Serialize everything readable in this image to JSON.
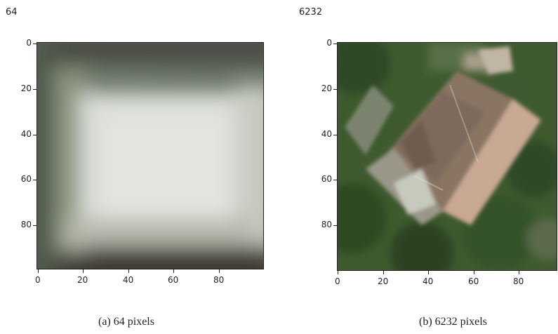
{
  "panels": [
    {
      "title": "64",
      "caption": "(a) 64 pixels",
      "image_description": "blurry low-resolution aerial patch: pale grey-white square with dark green-grey borders",
      "y_ticks": [
        "0",
        "20",
        "40",
        "60",
        "80"
      ],
      "x_ticks": [
        "0",
        "20",
        "40",
        "60",
        "80"
      ]
    },
    {
      "title": "6232",
      "caption": "(b) 6232 pixels",
      "image_description": "aerial view of a house with brown roof and paved area surrounded by green trees",
      "y_ticks": [
        "0",
        "20",
        "40",
        "60",
        "80"
      ],
      "x_ticks": [
        "0",
        "20",
        "40",
        "60",
        "80"
      ]
    }
  ],
  "colors": {
    "axis": "#222222",
    "background": "#ffffff"
  }
}
